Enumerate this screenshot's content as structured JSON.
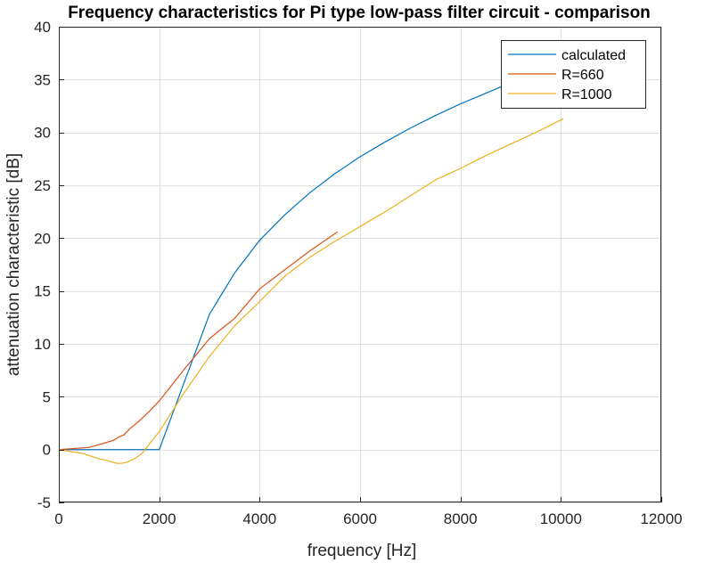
{
  "chart_data": {
    "type": "line",
    "title": "Frequency characteristics for Pi type low-pass filter circuit - comparison",
    "xlabel": "frequency [Hz]",
    "ylabel": "attenuation characteristic [dB]",
    "xlim": [
      0,
      12000
    ],
    "ylim": [
      -5,
      40
    ],
    "xticks": [
      0,
      2000,
      4000,
      6000,
      8000,
      10000,
      12000
    ],
    "yticks": [
      -5,
      0,
      5,
      10,
      15,
      20,
      25,
      30,
      35,
      40
    ],
    "grid": true,
    "legend_position": "top-right",
    "series": [
      {
        "name": "calculated",
        "color": "#0072BD",
        "x": [
          0,
          500,
          1000,
          1500,
          2000,
          3000,
          3500,
          4000,
          4500,
          5000,
          5500,
          6000,
          6500,
          7000,
          7500,
          8000,
          8500,
          9000
        ],
        "y": [
          0,
          0,
          0,
          0,
          0,
          12.8,
          16.7,
          19.8,
          22.2,
          24.3,
          26.1,
          27.7,
          29.1,
          30.4,
          31.6,
          32.7,
          33.7,
          34.7
        ]
      },
      {
        "name": "R=660",
        "color": "#D95319",
        "x": [
          0,
          300,
          600,
          900,
          1100,
          1200,
          1300,
          1400,
          1600,
          1800,
          2000,
          2500,
          3000,
          3500,
          4000,
          4500,
          5000,
          5550
        ],
        "y": [
          0,
          0.1,
          0.2,
          0.6,
          0.9,
          1.2,
          1.4,
          1.9,
          2.7,
          3.6,
          4.6,
          7.6,
          10.5,
          12.4,
          15.2,
          17.0,
          18.8,
          20.6
        ]
      },
      {
        "name": "R=1000",
        "color": "#EDB120",
        "x": [
          0,
          250,
          500,
          750,
          1000,
          1150,
          1250,
          1350,
          1500,
          1650,
          1800,
          2000,
          2500,
          3000,
          3500,
          4000,
          4500,
          5000,
          5500,
          6000,
          6500,
          7000,
          7500,
          8000,
          8500,
          9000,
          9500,
          10050
        ],
        "y": [
          0,
          -0.2,
          -0.4,
          -0.8,
          -1.1,
          -1.3,
          -1.3,
          -1.2,
          -0.9,
          -0.4,
          0.5,
          1.7,
          5.4,
          8.8,
          11.7,
          14.0,
          16.4,
          18.2,
          19.7,
          21.1,
          22.5,
          24.0,
          25.5,
          26.6,
          27.8,
          28.9,
          30.0,
          31.3
        ]
      }
    ]
  }
}
